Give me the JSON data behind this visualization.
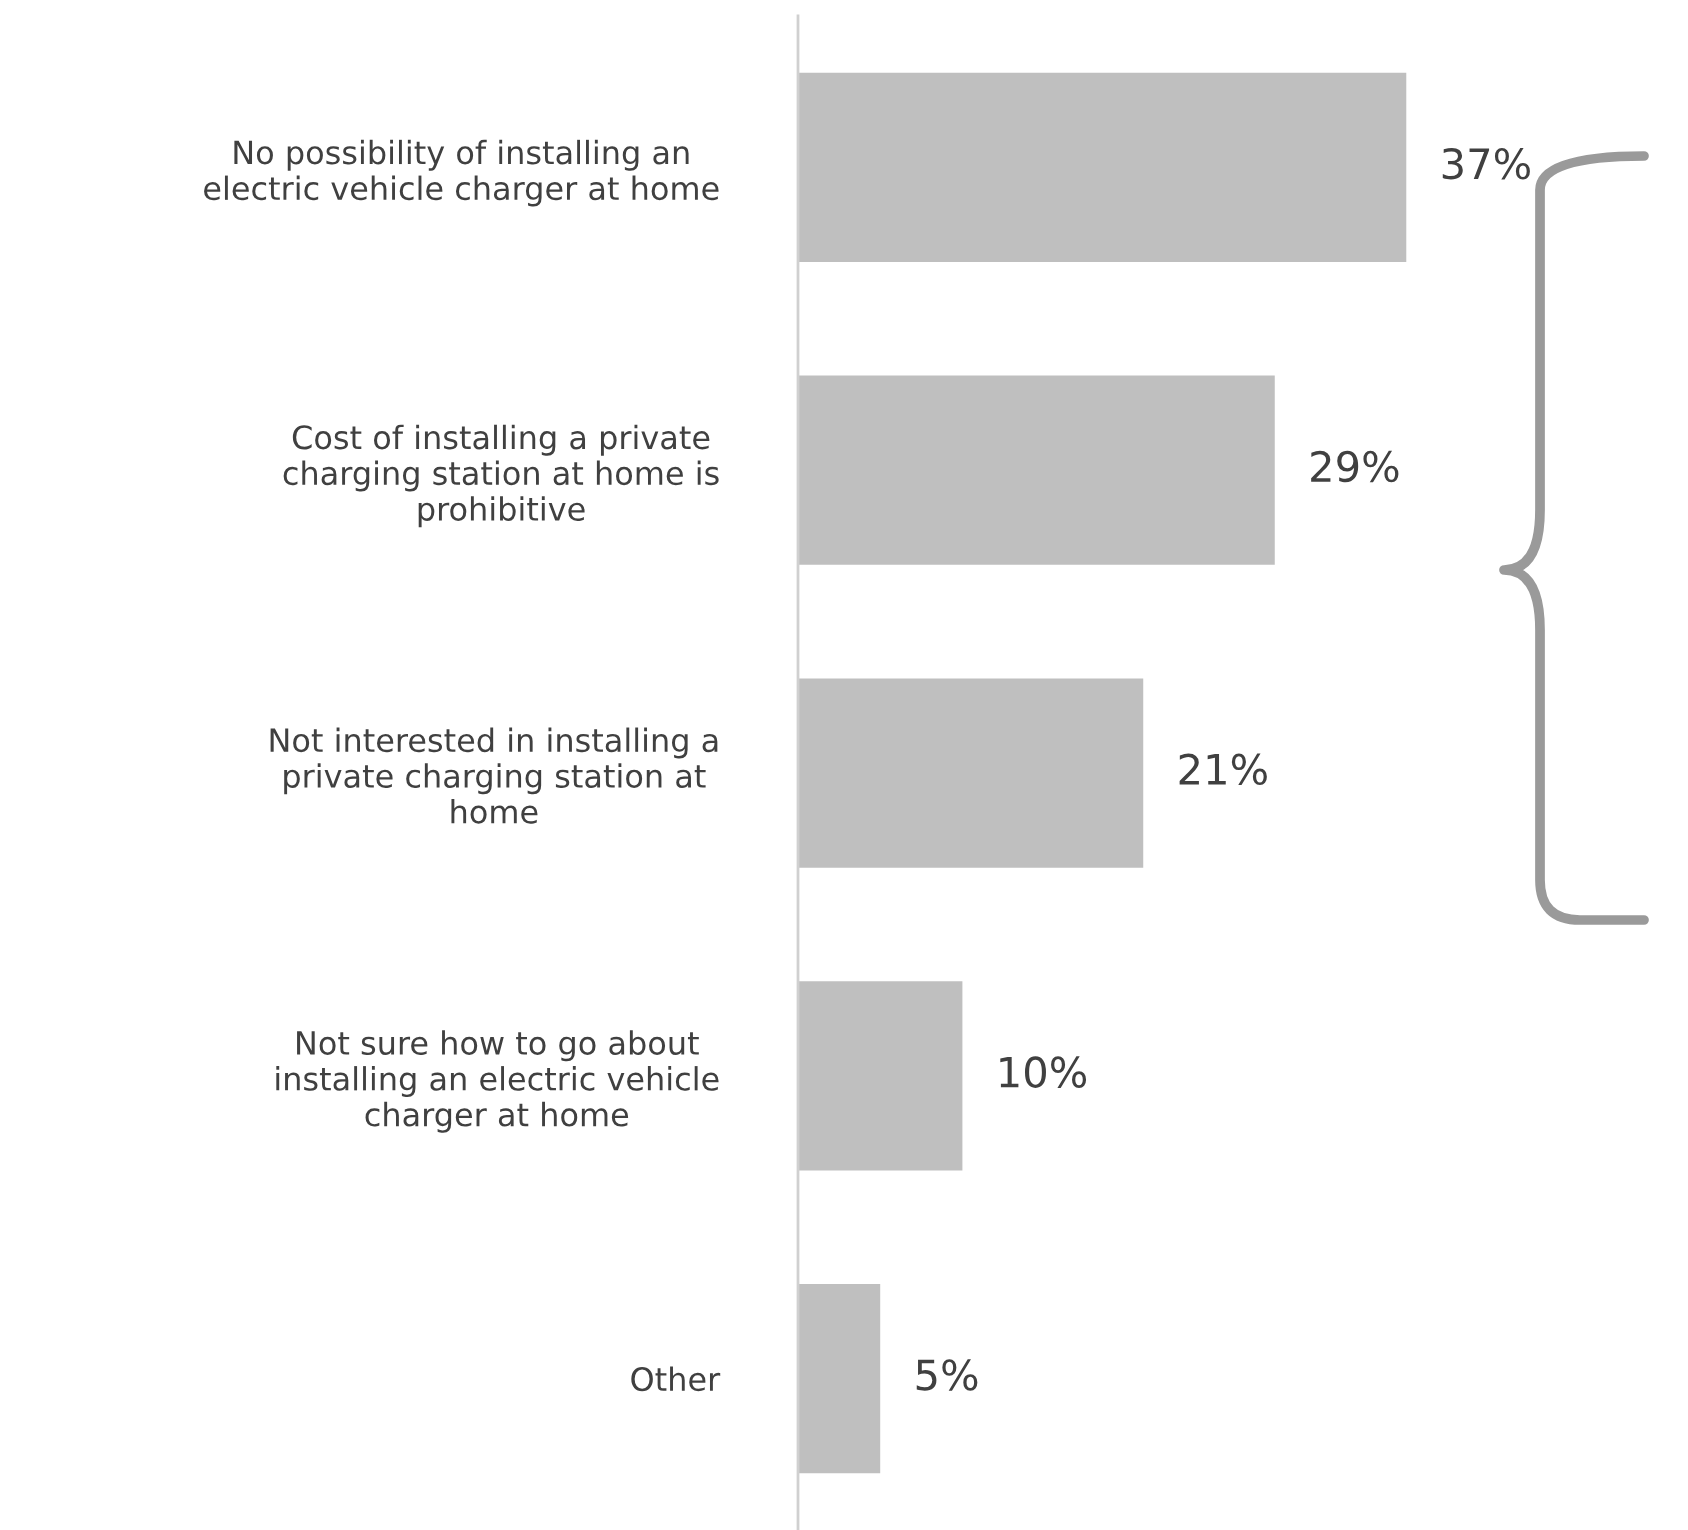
{
  "chart_data": {
    "type": "bar",
    "orientation": "horizontal",
    "categories": [
      "No possibility of installing an\nelectric vehicle charger at home",
      "Cost of installing a private\ncharging station at home is\nprohibitive",
      "Not interested in installing a\nprivate charging station at\nhome",
      "Not sure how to go about\ninstalling an electric vehicle\ncharger at home",
      "Other"
    ],
    "values": [
      37,
      29,
      21,
      10,
      5
    ],
    "value_labels": [
      "37%",
      "29%",
      "21%",
      "10%",
      "5%"
    ],
    "color": "#bfbfbf",
    "grid": false,
    "legend": false,
    "tick_labels": "y"
  }
}
